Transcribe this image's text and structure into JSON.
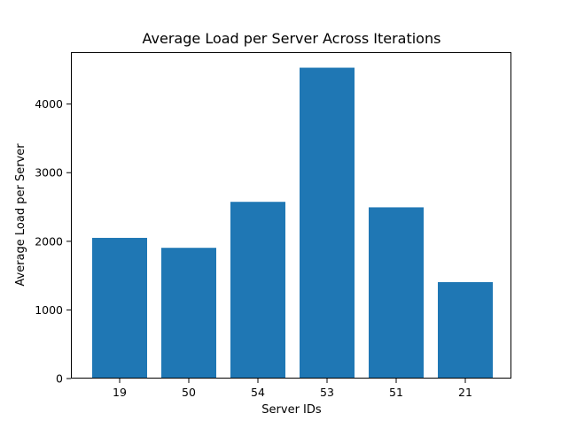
{
  "chart_data": {
    "type": "bar",
    "title": "Average Load per Server Across Iterations",
    "xlabel": "Server IDs",
    "ylabel": "Average Load per Server",
    "categories": [
      "19",
      "50",
      "54",
      "53",
      "51",
      "21"
    ],
    "values": [
      2050,
      1905,
      2575,
      4530,
      2495,
      1405
    ],
    "ylim": [
      0,
      4756
    ],
    "yticks": [
      0,
      1000,
      2000,
      3000,
      4000
    ],
    "bar_color": "#1f77b4",
    "grid": false,
    "legend": "none"
  }
}
